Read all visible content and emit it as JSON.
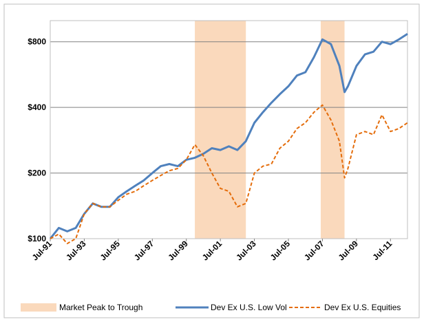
{
  "chart_data": {
    "type": "line",
    "x": [
      1991.5,
      1992.0,
      1992.5,
      1993.0,
      1993.5,
      1994.0,
      1994.5,
      1995.0,
      1995.5,
      1996.0,
      1996.5,
      1997.0,
      1997.5,
      1998.0,
      1998.5,
      1999.0,
      1999.5,
      2000.0,
      2000.5,
      2001.0,
      2001.5,
      2002.0,
      2002.5,
      2003.0,
      2003.5,
      2004.0,
      2004.5,
      2005.0,
      2005.5,
      2006.0,
      2006.5,
      2007.0,
      2007.5,
      2008.0,
      2008.5,
      2008.8,
      2009.0,
      2009.5,
      2010.0,
      2010.5,
      2011.0,
      2011.5,
      2012.0,
      2012.5
    ],
    "series": [
      {
        "name": "Dev Ex U.S. Low Vol",
        "color": "#4f81bd",
        "dash": false,
        "values": [
          100,
          112,
          108,
          112,
          130,
          145,
          140,
          140,
          155,
          165,
          175,
          185,
          200,
          215,
          220,
          215,
          230,
          235,
          245,
          260,
          255,
          265,
          255,
          280,
          340,
          380,
          420,
          460,
          500,
          560,
          580,
          680,
          820,
          780,
          620,
          470,
          500,
          620,
          700,
          720,
          800,
          780,
          820,
          870
        ]
      },
      {
        "name": "Dev Ex U.S. Equities",
        "color": "#e46c0a",
        "dash": true,
        "values": [
          100,
          105,
          95,
          100,
          130,
          145,
          140,
          140,
          150,
          160,
          165,
          175,
          185,
          195,
          205,
          210,
          230,
          270,
          240,
          200,
          170,
          165,
          140,
          145,
          200,
          215,
          220,
          260,
          280,
          320,
          340,
          380,
          410,
          350,
          280,
          190,
          210,
          300,
          310,
          300,
          370,
          310,
          320,
          340
        ]
      }
    ],
    "shaded": {
      "name": "Market Peak to Trough",
      "color": "#fad9bc",
      "ranges": [
        [
          2000.0,
          2003.0
        ],
        [
          2007.4,
          2008.8
        ]
      ]
    },
    "xlim": [
      1991.5,
      2012.5
    ],
    "xticks": [
      {
        "value": 1991.5,
        "label": "Jul-91"
      },
      {
        "value": 1993.5,
        "label": "Jul-93"
      },
      {
        "value": 1995.5,
        "label": "Jul-95"
      },
      {
        "value": 1997.5,
        "label": "Jul-97"
      },
      {
        "value": 1999.5,
        "label": "Jul-99"
      },
      {
        "value": 2001.5,
        "label": "Jul-01"
      },
      {
        "value": 2003.5,
        "label": "Jul-03"
      },
      {
        "value": 2005.5,
        "label": "Jul-05"
      },
      {
        "value": 2007.5,
        "label": "Jul-07"
      },
      {
        "value": 2009.5,
        "label": "Jul-09"
      },
      {
        "value": 2011.5,
        "label": "Jul-11"
      }
    ],
    "ylim": [
      100,
      1000
    ],
    "ylog": true,
    "yticks": [
      {
        "value": 100,
        "label": "$100"
      },
      {
        "value": 200,
        "label": "$200"
      },
      {
        "value": 400,
        "label": "$400"
      },
      {
        "value": 800,
        "label": "$800"
      }
    ],
    "grid": true,
    "legend": "bottom"
  }
}
